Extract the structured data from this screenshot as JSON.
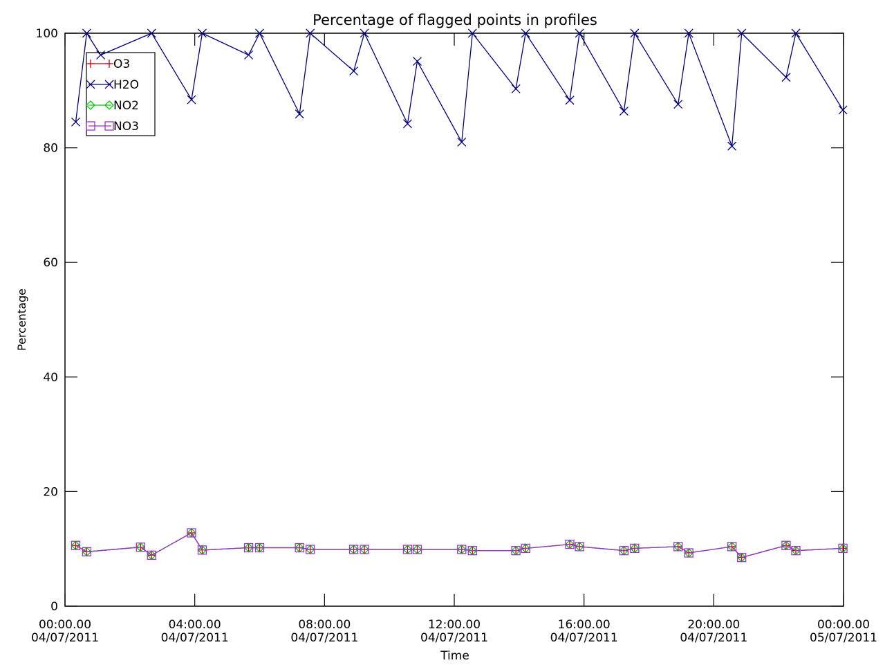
{
  "chart_data": {
    "type": "line",
    "title": "Percentage of flagged points in profiles",
    "xlabel": "Time",
    "ylabel": "Percentage",
    "x_unit": "hours since 00:00.00 04/07/2011",
    "xlim": [
      0,
      24
    ],
    "ylim": [
      0,
      100
    ],
    "yticks": [
      0,
      20,
      40,
      60,
      80,
      100
    ],
    "xticks": [
      {
        "x": 0,
        "time": "00:00.00",
        "date": "04/07/2011"
      },
      {
        "x": 4,
        "time": "04:00.00",
        "date": "04/07/2011"
      },
      {
        "x": 8,
        "time": "08:00.00",
        "date": "04/07/2011"
      },
      {
        "x": 12,
        "time": "12:00.00",
        "date": "04/07/2011"
      },
      {
        "x": 16,
        "time": "16:00.00",
        "date": "04/07/2011"
      },
      {
        "x": 20,
        "time": "20:00.00",
        "date": "04/07/2011"
      },
      {
        "x": 24,
        "time": "00:00.00",
        "date": "05/07/2011"
      }
    ],
    "legend_position": "top-left",
    "grid": false,
    "series": [
      {
        "name": "O3",
        "color": "#cc0000",
        "marker": "plus",
        "x": [
          0.33,
          0.67,
          2.33,
          2.67,
          3.9,
          4.23,
          5.66,
          6.0,
          7.23,
          7.56,
          8.9,
          9.23,
          10.56,
          10.86,
          12.23,
          12.56,
          13.9,
          14.2,
          15.56,
          15.86,
          17.23,
          17.56,
          18.9,
          19.23,
          20.56,
          20.86,
          22.23,
          22.53,
          23.98
        ],
        "y": [
          10.6,
          9.5,
          10.3,
          8.9,
          12.8,
          9.8,
          10.2,
          10.2,
          10.2,
          9.9,
          9.9,
          9.9,
          9.9,
          9.9,
          9.9,
          9.7,
          9.7,
          10.1,
          10.8,
          10.4,
          9.7,
          10.1,
          10.4,
          9.3,
          10.4,
          8.5,
          10.6,
          9.7,
          10.1
        ]
      },
      {
        "name": "H2O",
        "color": "#000080",
        "marker": "x",
        "x": [
          0.33,
          0.67,
          1.1,
          2.67,
          3.9,
          4.23,
          5.66,
          6.0,
          7.23,
          7.56,
          8.9,
          9.23,
          10.56,
          10.86,
          12.23,
          12.56,
          13.9,
          14.2,
          15.56,
          15.86,
          17.23,
          17.56,
          18.9,
          19.23,
          20.56,
          20.86,
          22.23,
          22.53,
          23.98
        ],
        "y": [
          84.5,
          100.0,
          96.2,
          100.0,
          88.4,
          100.0,
          96.2,
          100.0,
          85.9,
          100.0,
          93.4,
          100.0,
          84.2,
          95.1,
          81.0,
          100.0,
          90.3,
          100.0,
          88.3,
          100.0,
          86.4,
          100.0,
          87.6,
          100.0,
          80.3,
          100.0,
          92.3,
          100.0,
          86.6
        ]
      },
      {
        "name": "NO2",
        "color": "#00cc00",
        "marker": "diamond",
        "x": [
          0.33,
          0.67,
          2.33,
          2.67,
          3.9,
          4.23,
          5.66,
          6.0,
          7.23,
          7.56,
          8.9,
          9.23,
          10.56,
          10.86,
          12.23,
          12.56,
          13.9,
          14.2,
          15.56,
          15.86,
          17.23,
          17.56,
          18.9,
          19.23,
          20.56,
          20.86,
          22.23,
          22.53,
          23.98
        ],
        "y": [
          10.6,
          9.5,
          10.3,
          8.9,
          12.8,
          9.8,
          10.2,
          10.2,
          10.2,
          9.9,
          9.9,
          9.9,
          9.9,
          9.9,
          9.9,
          9.7,
          9.7,
          10.1,
          10.8,
          10.4,
          9.7,
          10.1,
          10.4,
          9.3,
          10.4,
          8.5,
          10.6,
          9.7,
          10.1
        ]
      },
      {
        "name": "NO3",
        "color": "#9933cc",
        "marker": "square",
        "x": [
          0.33,
          0.67,
          2.33,
          2.67,
          3.9,
          4.23,
          5.66,
          6.0,
          7.23,
          7.56,
          8.9,
          9.23,
          10.56,
          10.86,
          12.23,
          12.56,
          13.9,
          14.2,
          15.56,
          15.86,
          17.23,
          17.56,
          18.9,
          19.23,
          20.56,
          20.86,
          22.23,
          22.53,
          23.98
        ],
        "y": [
          10.6,
          9.5,
          10.3,
          8.9,
          12.8,
          9.8,
          10.2,
          10.2,
          10.2,
          9.9,
          9.9,
          9.9,
          9.9,
          9.9,
          9.9,
          9.7,
          9.7,
          10.1,
          10.8,
          10.4,
          9.7,
          10.1,
          10.4,
          9.3,
          10.4,
          8.5,
          10.6,
          9.7,
          10.1
        ]
      }
    ]
  }
}
